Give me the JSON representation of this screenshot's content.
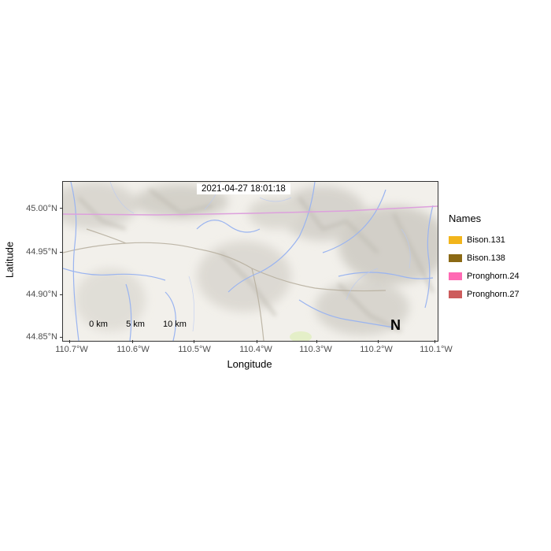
{
  "map": {
    "timestamp": "2021-04-27 18:01:18",
    "x_axis_title": "Longitude",
    "y_axis_title": "Latitude",
    "x_ticks": [
      "110.7°W",
      "110.6°W",
      "110.5°W",
      "110.4°W",
      "110.3°W",
      "110.2°W",
      "110.1°W"
    ],
    "y_ticks": [
      "45.00°N",
      "44.95°N",
      "44.90°N",
      "44.85°N"
    ],
    "x_range_lon": [
      -110.71,
      -110.09
    ],
    "y_range_lat": [
      44.848,
      45.03
    ],
    "scale_bar": {
      "labels": [
        "0 km",
        "5 km",
        "10 km"
      ]
    },
    "north_arrow": "N",
    "boundary_line_color": "#dda0dd",
    "river_color": "#9ab4f0",
    "basemap": "shaded relief terrain with rivers and roads",
    "legend": {
      "title": "Names",
      "items": [
        {
          "label": "Bison.131",
          "color": "#f2b51b"
        },
        {
          "label": "Bison.138",
          "color": "#8b6914"
        },
        {
          "label": "Pronghorn.24",
          "color": "#ff69b4"
        },
        {
          "label": "Pronghorn.27",
          "color": "#cd5c5c"
        }
      ]
    }
  }
}
